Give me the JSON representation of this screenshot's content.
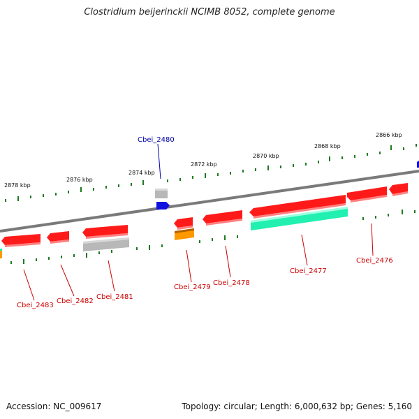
{
  "title": "Clostridium beijerinckii NCIMB 8052, complete genome",
  "footer": {
    "accession": "Accession: NC_009617",
    "summary": "Topology: circular; Length: 6,000,632 bp; Genes: 5,160"
  },
  "colors": {
    "backbone": "#7a7a7a",
    "tick": "#1f7a1f",
    "red_gene": "#ff1a1a",
    "grey_gene": "#b8b8b8",
    "blue_gene": "#1010e0",
    "orange_gene": "#ff9900",
    "teal_gene": "#22f0b0",
    "red_label": "#cc0000",
    "blue_label": "#0000aa"
  },
  "scale_labels": [
    "2878 kbp",
    "2876 kbp",
    "2874 kbp",
    "2872 kbp",
    "2870 kbp",
    "2868 kbp",
    "2866 kbp"
  ],
  "gene_labels": [
    {
      "id": "g2480",
      "text": "Cbei_2480",
      "color": "blue"
    },
    {
      "id": "g2476",
      "text": "Cbei_2476",
      "color": "red"
    },
    {
      "id": "g2477",
      "text": "Cbei_2477",
      "color": "red"
    },
    {
      "id": "g2478",
      "text": "Cbei_2478",
      "color": "red"
    },
    {
      "id": "g2479",
      "text": "Cbei_2479",
      "color": "red"
    },
    {
      "id": "g2481",
      "text": "Cbei_2481",
      "color": "red"
    },
    {
      "id": "g2482",
      "text": "Cbei_2482",
      "color": "red"
    },
    {
      "id": "g2483",
      "text": "Cbei_2483",
      "color": "red"
    }
  ]
}
